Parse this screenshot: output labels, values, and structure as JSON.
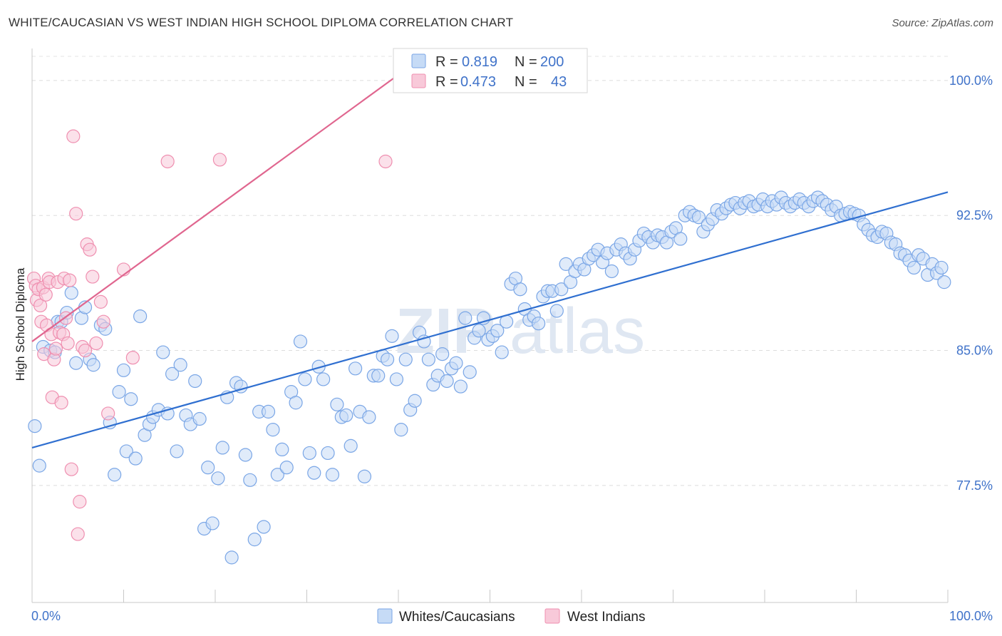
{
  "title": "WHITE/CAUCASIAN VS WEST INDIAN HIGH SCHOOL DIPLOMA CORRELATION CHART",
  "source": "Source: ZipAtlas.com",
  "watermark": {
    "zip": "ZIP",
    "atlas": "atlas"
  },
  "legend": {
    "r_label": "R =",
    "n_label": "N =",
    "rows": [
      {
        "r": "0.819",
        "n": "200",
        "color": "#7aa6e6",
        "fill": "#c6dbf6"
      },
      {
        "r": "0.473",
        "n": "43",
        "color": "#ef8fb0",
        "fill": "#f8c9d9"
      }
    ]
  },
  "bottom_legend": [
    "Whites/Caucasians",
    "West Indians"
  ],
  "chart_data": {
    "type": "scatter",
    "title": "WHITE/CAUCASIAN VS WEST INDIAN HIGH SCHOOL DIPLOMA CORRELATION CHART",
    "xlabel": "",
    "ylabel": "High School Diploma",
    "xlim": [
      0,
      100
    ],
    "ylim": [
      71.0,
      101.5
    ],
    "x_tick_labels": [
      "0.0%",
      "100.0%"
    ],
    "y_ticks": [
      77.5,
      85.0,
      92.5,
      100.0
    ],
    "y_tick_labels": [
      "77.5%",
      "85.0%",
      "92.5%",
      "100.0%"
    ],
    "colors": {
      "blue": "#3f72c9",
      "blue_line": "#2f6fd0",
      "pink": "#e0668f"
    },
    "series": [
      {
        "name": "Whites/Caucasians",
        "color": "#7aa6e6",
        "trend": {
          "x": [
            0,
            100
          ],
          "y": [
            79.6,
            93.8
          ]
        },
        "points": [
          [
            0.3,
            80.8
          ],
          [
            0.8,
            78.6
          ],
          [
            1.2,
            85.2
          ],
          [
            2.0,
            85.0
          ],
          [
            2.5,
            84.9
          ],
          [
            2.8,
            86.6
          ],
          [
            3.2,
            86.6
          ],
          [
            3.8,
            87.1
          ],
          [
            4.3,
            88.2
          ],
          [
            4.8,
            84.3
          ],
          [
            5.4,
            86.8
          ],
          [
            5.8,
            87.4
          ],
          [
            6.3,
            84.5
          ],
          [
            6.7,
            84.2
          ],
          [
            7.5,
            86.4
          ],
          [
            8.0,
            86.2
          ],
          [
            8.5,
            81.0
          ],
          [
            9.0,
            78.1
          ],
          [
            9.5,
            82.7
          ],
          [
            10.0,
            83.9
          ],
          [
            10.3,
            79.4
          ],
          [
            10.8,
            82.3
          ],
          [
            11.3,
            79.0
          ],
          [
            11.8,
            86.9
          ],
          [
            12.3,
            80.3
          ],
          [
            12.8,
            80.9
          ],
          [
            13.2,
            81.3
          ],
          [
            13.8,
            81.7
          ],
          [
            14.3,
            84.9
          ],
          [
            14.8,
            81.5
          ],
          [
            15.3,
            83.7
          ],
          [
            15.8,
            79.4
          ],
          [
            16.2,
            84.2
          ],
          [
            16.8,
            81.4
          ],
          [
            17.3,
            80.9
          ],
          [
            17.8,
            83.3
          ],
          [
            18.3,
            81.2
          ],
          [
            18.8,
            75.1
          ],
          [
            19.2,
            78.5
          ],
          [
            19.7,
            75.4
          ],
          [
            20.3,
            77.9
          ],
          [
            20.8,
            79.6
          ],
          [
            21.3,
            82.4
          ],
          [
            21.8,
            73.5
          ],
          [
            22.3,
            83.2
          ],
          [
            22.8,
            83.0
          ],
          [
            23.3,
            79.2
          ],
          [
            23.8,
            77.8
          ],
          [
            24.3,
            74.5
          ],
          [
            24.8,
            81.6
          ],
          [
            25.3,
            75.2
          ],
          [
            25.8,
            81.6
          ],
          [
            26.3,
            80.6
          ],
          [
            26.8,
            78.1
          ],
          [
            27.3,
            79.5
          ],
          [
            27.8,
            78.5
          ],
          [
            28.3,
            82.7
          ],
          [
            28.8,
            82.1
          ],
          [
            29.3,
            85.5
          ],
          [
            29.8,
            83.4
          ],
          [
            30.3,
            79.3
          ],
          [
            30.8,
            78.2
          ],
          [
            31.3,
            84.1
          ],
          [
            31.8,
            83.4
          ],
          [
            32.3,
            79.3
          ],
          [
            32.8,
            78.1
          ],
          [
            33.3,
            82.0
          ],
          [
            33.8,
            81.3
          ],
          [
            34.3,
            81.4
          ],
          [
            34.8,
            79.7
          ],
          [
            35.3,
            84.0
          ],
          [
            35.8,
            81.6
          ],
          [
            36.3,
            78.0
          ],
          [
            36.8,
            81.3
          ],
          [
            37.3,
            83.6
          ],
          [
            37.8,
            83.6
          ],
          [
            38.3,
            84.7
          ],
          [
            38.8,
            84.5
          ],
          [
            39.3,
            85.8
          ],
          [
            39.8,
            83.4
          ],
          [
            40.3,
            80.6
          ],
          [
            40.8,
            84.5
          ],
          [
            41.3,
            81.7
          ],
          [
            41.8,
            82.2
          ],
          [
            42.3,
            86.0
          ],
          [
            42.8,
            85.5
          ],
          [
            43.3,
            84.5
          ],
          [
            43.8,
            83.1
          ],
          [
            44.3,
            83.6
          ],
          [
            44.8,
            84.8
          ],
          [
            45.3,
            83.3
          ],
          [
            45.8,
            84.0
          ],
          [
            46.3,
            84.3
          ],
          [
            46.8,
            83.0
          ],
          [
            47.3,
            86.8
          ],
          [
            47.8,
            83.8
          ],
          [
            48.3,
            85.7
          ],
          [
            48.8,
            86.1
          ],
          [
            49.3,
            86.8
          ],
          [
            49.8,
            85.6
          ],
          [
            50.3,
            85.8
          ],
          [
            50.8,
            86.1
          ],
          [
            51.3,
            84.9
          ],
          [
            51.8,
            86.6
          ],
          [
            52.3,
            88.7
          ],
          [
            52.8,
            89.0
          ],
          [
            53.3,
            88.4
          ],
          [
            53.8,
            87.3
          ],
          [
            54.3,
            86.7
          ],
          [
            54.8,
            86.9
          ],
          [
            55.3,
            86.5
          ],
          [
            55.8,
            88.0
          ],
          [
            56.3,
            88.3
          ],
          [
            56.8,
            88.3
          ],
          [
            57.3,
            87.2
          ],
          [
            57.8,
            88.4
          ],
          [
            58.3,
            89.8
          ],
          [
            58.8,
            88.8
          ],
          [
            59.3,
            89.4
          ],
          [
            59.8,
            89.8
          ],
          [
            60.3,
            89.5
          ],
          [
            60.8,
            90.1
          ],
          [
            61.3,
            90.3
          ],
          [
            61.8,
            90.6
          ],
          [
            62.3,
            89.9
          ],
          [
            62.8,
            90.4
          ],
          [
            63.3,
            89.4
          ],
          [
            63.8,
            90.6
          ],
          [
            64.3,
            90.9
          ],
          [
            64.8,
            90.4
          ],
          [
            65.3,
            90.1
          ],
          [
            65.8,
            90.6
          ],
          [
            66.3,
            91.1
          ],
          [
            66.8,
            91.5
          ],
          [
            67.3,
            91.3
          ],
          [
            67.8,
            91.0
          ],
          [
            68.3,
            91.4
          ],
          [
            68.8,
            91.3
          ],
          [
            69.3,
            91.0
          ],
          [
            69.8,
            91.6
          ],
          [
            70.3,
            91.8
          ],
          [
            70.8,
            91.2
          ],
          [
            71.3,
            92.5
          ],
          [
            71.8,
            92.7
          ],
          [
            72.3,
            92.5
          ],
          [
            72.8,
            92.4
          ],
          [
            73.3,
            91.6
          ],
          [
            73.8,
            92.0
          ],
          [
            74.3,
            92.3
          ],
          [
            74.8,
            92.8
          ],
          [
            75.3,
            92.6
          ],
          [
            75.8,
            92.9
          ],
          [
            76.3,
            93.1
          ],
          [
            76.8,
            93.2
          ],
          [
            77.3,
            92.9
          ],
          [
            77.8,
            93.2
          ],
          [
            78.3,
            93.3
          ],
          [
            78.8,
            93.0
          ],
          [
            79.3,
            93.1
          ],
          [
            79.8,
            93.4
          ],
          [
            80.3,
            93.0
          ],
          [
            80.8,
            93.3
          ],
          [
            81.3,
            93.1
          ],
          [
            81.8,
            93.5
          ],
          [
            82.3,
            93.2
          ],
          [
            82.8,
            93.0
          ],
          [
            83.3,
            93.2
          ],
          [
            83.8,
            93.4
          ],
          [
            84.3,
            93.2
          ],
          [
            84.8,
            93.0
          ],
          [
            85.3,
            93.3
          ],
          [
            85.8,
            93.5
          ],
          [
            86.3,
            93.3
          ],
          [
            86.8,
            93.1
          ],
          [
            87.3,
            92.8
          ],
          [
            87.8,
            93.0
          ],
          [
            88.3,
            92.5
          ],
          [
            88.8,
            92.6
          ],
          [
            89.3,
            92.7
          ],
          [
            89.8,
            92.6
          ],
          [
            90.3,
            92.5
          ],
          [
            90.8,
            92.0
          ],
          [
            91.3,
            91.7
          ],
          [
            91.8,
            91.4
          ],
          [
            92.3,
            91.3
          ],
          [
            92.8,
            91.6
          ],
          [
            93.3,
            91.5
          ],
          [
            93.8,
            91.0
          ],
          [
            94.3,
            90.9
          ],
          [
            94.8,
            90.4
          ],
          [
            95.3,
            90.3
          ],
          [
            95.8,
            90.0
          ],
          [
            96.3,
            89.6
          ],
          [
            96.8,
            90.3
          ],
          [
            97.3,
            90.1
          ],
          [
            97.8,
            89.2
          ],
          [
            98.3,
            89.8
          ],
          [
            98.8,
            89.3
          ],
          [
            99.3,
            89.6
          ],
          [
            99.6,
            88.8
          ]
        ]
      },
      {
        "name": "West Indians",
        "color": "#ef8fb0",
        "trend": {
          "x": [
            0,
            40.5
          ],
          "y": [
            85.5,
            100.5
          ]
        },
        "points": [
          [
            0.2,
            89.0
          ],
          [
            0.4,
            88.6
          ],
          [
            0.5,
            87.8
          ],
          [
            0.7,
            88.4
          ],
          [
            0.9,
            87.5
          ],
          [
            1.0,
            86.6
          ],
          [
            1.2,
            88.5
          ],
          [
            1.3,
            84.8
          ],
          [
            1.5,
            88.1
          ],
          [
            1.6,
            86.4
          ],
          [
            1.8,
            89.0
          ],
          [
            1.9,
            88.8
          ],
          [
            2.1,
            85.9
          ],
          [
            2.2,
            82.4
          ],
          [
            2.4,
            84.5
          ],
          [
            2.6,
            85.1
          ],
          [
            2.8,
            88.8
          ],
          [
            3.0,
            86.0
          ],
          [
            3.2,
            82.1
          ],
          [
            3.4,
            85.9
          ],
          [
            3.5,
            89.0
          ],
          [
            3.7,
            86.8
          ],
          [
            3.9,
            85.4
          ],
          [
            4.1,
            88.9
          ],
          [
            4.3,
            78.4
          ],
          [
            4.5,
            96.9
          ],
          [
            4.8,
            92.6
          ],
          [
            5.0,
            74.8
          ],
          [
            5.2,
            76.6
          ],
          [
            5.5,
            85.2
          ],
          [
            5.8,
            85.0
          ],
          [
            6.0,
            90.9
          ],
          [
            6.3,
            90.6
          ],
          [
            6.6,
            89.1
          ],
          [
            7.0,
            85.4
          ],
          [
            7.5,
            87.7
          ],
          [
            7.8,
            86.6
          ],
          [
            8.3,
            81.5
          ],
          [
            10.0,
            89.5
          ],
          [
            11.0,
            84.6
          ],
          [
            14.8,
            95.5
          ],
          [
            20.5,
            95.6
          ],
          [
            38.6,
            95.5
          ]
        ]
      }
    ]
  }
}
